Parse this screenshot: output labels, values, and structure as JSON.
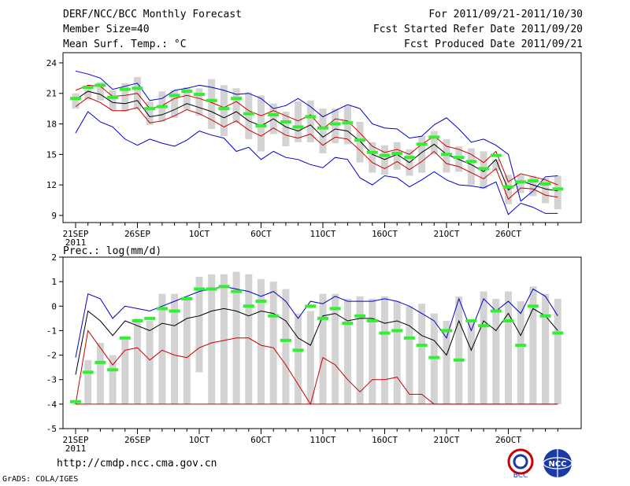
{
  "header": {
    "title": "DERF/NCC/BCC Monthly Forecast",
    "member_size": "Member Size=40",
    "variable": "Mean Surf. Temp.: °C",
    "period": "For 2011/09/21-2011/10/30",
    "started": "Fcst Started Refer Date 2011/09/20",
    "produced": "Fcst Produced Date 2011/09/21"
  },
  "footer": {
    "url": "http://cmdp.ncc.cma.gov.cn",
    "grads": "GrADS: COLA/IGES",
    "logo1_text": "BCC",
    "logo2_text": "NCC"
  },
  "chart_data": [
    {
      "type": "line",
      "title": "Mean Surf. Temp.: °C",
      "xlabel": "",
      "ylabel": "°C",
      "ylim": [
        8.3,
        25
      ],
      "yticks": [
        9,
        12,
        15,
        18,
        21,
        24
      ],
      "xticks": [
        {
          "day": 1,
          "label": "21SEP"
        },
        {
          "day": 6,
          "label": "26SEP"
        },
        {
          "day": 11,
          "label": "1OCT"
        },
        {
          "day": 16,
          "label": "6OCT"
        },
        {
          "day": 21,
          "label": "11OCT"
        },
        {
          "day": 26,
          "label": "16OCT"
        },
        {
          "day": 31,
          "label": "21OCT"
        },
        {
          "day": 36,
          "label": "26OCT"
        }
      ],
      "year_label": "2011",
      "days": 40,
      "series": [
        {
          "name": "max",
          "color": "#0000cc",
          "values": [
            23.2,
            22.9,
            22.5,
            21.4,
            21.7,
            22.0,
            20.3,
            20.5,
            21.3,
            21.5,
            21.8,
            21.6,
            21.3,
            20.9,
            21.0,
            20.5,
            19.5,
            19.8,
            20.5,
            19.7,
            18.7,
            19.3,
            19.9,
            19.5,
            18.0,
            17.6,
            17.5,
            16.6,
            16.8,
            17.9,
            18.6,
            17.5,
            16.2,
            16.5,
            15.9,
            15.0,
            10.4,
            11.4,
            12.8,
            12.9
          ]
        },
        {
          "name": "upper",
          "color": "#cc0000",
          "values": [
            21.3,
            21.8,
            21.7,
            20.7,
            20.8,
            21.0,
            19.5,
            19.8,
            20.5,
            20.8,
            20.5,
            20.1,
            19.6,
            20.2,
            19.3,
            18.8,
            19.3,
            18.8,
            18.3,
            18.9,
            17.5,
            18.5,
            18.3,
            17.1,
            15.8,
            15.2,
            15.5,
            15.0,
            16.0,
            16.8,
            15.8,
            15.5,
            15.0,
            14.2,
            15.3,
            12.3,
            13.1,
            12.8,
            12.5,
            12.0
          ]
        },
        {
          "name": "mean",
          "color": "#000000",
          "values": [
            20.4,
            21.2,
            20.9,
            20.1,
            20.0,
            20.3,
            18.7,
            18.9,
            19.4,
            20.0,
            19.6,
            19.2,
            18.6,
            19.2,
            18.3,
            17.8,
            18.5,
            17.7,
            17.3,
            17.9,
            16.7,
            17.5,
            17.3,
            16.3,
            15.0,
            14.5,
            15.0,
            14.2,
            15.2,
            16.0,
            15.0,
            14.5,
            14.0,
            13.3,
            14.5,
            11.5,
            12.4,
            12.0,
            11.6,
            11.4
          ]
        },
        {
          "name": "lower",
          "color": "#cc0000",
          "values": [
            19.7,
            20.6,
            20.1,
            19.3,
            19.3,
            19.6,
            18.1,
            18.3,
            18.8,
            19.4,
            19.0,
            18.4,
            17.7,
            18.3,
            17.4,
            16.8,
            17.6,
            16.9,
            16.6,
            17.0,
            15.9,
            16.7,
            16.5,
            15.4,
            14.2,
            13.6,
            14.3,
            13.5,
            14.3,
            15.3,
            14.1,
            13.8,
            13.2,
            12.6,
            13.6,
            10.6,
            11.7,
            11.6,
            11.0,
            10.8
          ]
        },
        {
          "name": "min",
          "color": "#0000cc",
          "values": [
            17.1,
            19.2,
            18.2,
            17.7,
            16.5,
            15.9,
            16.5,
            16.1,
            15.8,
            16.4,
            17.3,
            16.9,
            16.6,
            15.3,
            15.7,
            14.5,
            15.3,
            14.7,
            14.5,
            14.0,
            13.7,
            14.7,
            14.5,
            12.7,
            12.0,
            12.9,
            12.7,
            11.8,
            12.5,
            13.3,
            12.5,
            12.0,
            11.9,
            11.7,
            12.3,
            9.1,
            10.2,
            9.8,
            9.2,
            9.2
          ]
        },
        {
          "name": "observed",
          "color": "#33ee33",
          "values": [
            20.5,
            21.6,
            21.8,
            20.6,
            21.4,
            21.5,
            19.5,
            19.7,
            20.8,
            21.2,
            20.9,
            20.3,
            19.5,
            20.5,
            19.0,
            17.8,
            18.9,
            18.2,
            17.7,
            18.7,
            17.6,
            18.0,
            18.1,
            16.4,
            15.2,
            14.9,
            15.1,
            14.7,
            16.0,
            16.7,
            15.0,
            14.7,
            14.3,
            13.6,
            14.9,
            11.8,
            12.3,
            12.4,
            12.1,
            11.6
          ]
        }
      ],
      "box_low": [
        19.5,
        20.4,
        20.3,
        19.3,
        19.2,
        19.4,
        17.9,
        18.2,
        18.6,
        19.4,
        18.8,
        17.5,
        16.8,
        18.1,
        16.5,
        15.3,
        17.0,
        15.8,
        16.2,
        16.2,
        15.1,
        16.1,
        16.0,
        14.2,
        13.2,
        13.0,
        13.5,
        12.9,
        13.2,
        15.0,
        13.2,
        13.3,
        12.0,
        11.6,
        13.4,
        10.1,
        11.2,
        10.9,
        10.2,
        9.6
      ],
      "box_high": [
        21.0,
        21.7,
        22.1,
        21.3,
        22.0,
        22.6,
        20.2,
        21.2,
        21.3,
        21.6,
        21.5,
        22.4,
        21.8,
        21.5,
        21.1,
        20.8,
        20.0,
        19.2,
        20.2,
        20.3,
        19.5,
        19.5,
        19.8,
        18.2,
        16.2,
        15.9,
        16.2,
        15.5,
        16.8,
        17.3,
        16.5,
        15.8,
        15.6,
        15.3,
        14.5,
        13.0,
        13.0,
        12.9,
        12.7,
        12.9
      ]
    },
    {
      "type": "line",
      "title": "Prec.: log(mm/d)",
      "xlabel": "",
      "ylabel": "log(mm/d)",
      "ylim": [
        -5,
        2
      ],
      "yticks": [
        -5,
        -4,
        -3,
        -2,
        -1,
        0,
        1,
        2
      ],
      "xticks": [
        {
          "day": 1,
          "label": "21SEP"
        },
        {
          "day": 6,
          "label": "26SEP"
        },
        {
          "day": 11,
          "label": "1OCT"
        },
        {
          "day": 16,
          "label": "6OCT"
        },
        {
          "day": 21,
          "label": "11OCT"
        },
        {
          "day": 26,
          "label": "16OCT"
        },
        {
          "day": 31,
          "label": "21OCT"
        },
        {
          "day": 36,
          "label": "26OCT"
        }
      ],
      "year_label": "2011",
      "days": 40,
      "series": [
        {
          "name": "max",
          "color": "#0000cc",
          "values": [
            -2.1,
            0.5,
            0.3,
            -0.5,
            0.0,
            -0.1,
            -0.2,
            0.0,
            0.2,
            0.4,
            0.6,
            0.7,
            0.8,
            0.7,
            0.6,
            0.4,
            0.6,
            0.2,
            -0.5,
            0.2,
            0.1,
            0.4,
            0.2,
            0.2,
            0.2,
            0.3,
            0.2,
            0.0,
            -0.3,
            -0.6,
            -1.3,
            0.3,
            -1.0,
            0.3,
            -0.2,
            0.2,
            -0.3,
            0.7,
            0.4,
            -0.4
          ]
        },
        {
          "name": "mean",
          "color": "#000000",
          "values": [
            -2.8,
            -0.2,
            -0.6,
            -1.2,
            -0.6,
            -0.8,
            -1.0,
            -0.7,
            -0.8,
            -0.5,
            -0.4,
            -0.2,
            -0.1,
            -0.2,
            -0.4,
            -0.2,
            -0.3,
            -0.6,
            -1.3,
            -1.6,
            -0.4,
            -0.3,
            -0.6,
            -0.5,
            -0.5,
            -0.7,
            -0.6,
            -0.8,
            -1.2,
            -1.4,
            -2.0,
            -0.6,
            -1.8,
            -0.6,
            -1.0,
            -0.3,
            -1.2,
            -0.1,
            -0.4,
            -1.0
          ]
        },
        {
          "name": "lower",
          "color": "#cc0000",
          "values": [
            -4.0,
            -1.0,
            -1.7,
            -2.4,
            -1.8,
            -1.7,
            -2.2,
            -1.8,
            -2.0,
            -2.1,
            -1.7,
            -1.5,
            -1.4,
            -1.3,
            -1.3,
            -1.6,
            -1.7,
            -2.4,
            -3.2,
            -4.0,
            -2.1,
            -2.4,
            -3.0,
            -3.5,
            -3.0,
            -3.0,
            -2.9,
            -3.6,
            -3.6,
            -4.0,
            -4.0,
            -4.0,
            -4.0,
            -4.0,
            -4.0,
            -4.0,
            -4.0,
            -4.0,
            -4.0,
            -4.0
          ]
        },
        {
          "name": "min",
          "color": "#cc0000",
          "values": [
            -4.0,
            -4.0,
            -4.0,
            -4.0,
            -4.0,
            -4.0,
            -4.0,
            -4.0,
            -4.0,
            -4.0,
            -4.0,
            -4.0,
            -4.0,
            -4.0,
            -4.0,
            -4.0,
            -4.0,
            -4.0,
            -4.0,
            -4.0,
            -4.0,
            -4.0,
            -4.0,
            -4.0,
            -4.0,
            -4.0,
            -4.0,
            -4.0,
            -4.0,
            -4.0,
            -4.0,
            -4.0,
            -4.0,
            -4.0,
            -4.0,
            -4.0,
            -4.0,
            -4.0,
            -4.0,
            -4.0
          ]
        },
        {
          "name": "observed",
          "color": "#33ee33",
          "values": [
            -3.9,
            -2.7,
            -2.3,
            -2.6,
            -1.3,
            -0.6,
            -0.5,
            -0.1,
            -0.2,
            0.3,
            0.7,
            0.7,
            0.8,
            0.6,
            0.0,
            0.2,
            -0.4,
            -1.4,
            -1.8,
            0.0,
            -0.5,
            -0.1,
            -0.7,
            -0.4,
            -0.6,
            -1.1,
            -1.0,
            -1.3,
            -1.6,
            -2.1,
            -1.0,
            -2.2,
            -0.6,
            -0.8,
            -0.2,
            -0.6,
            -1.6,
            0.0,
            -0.4,
            -1.1
          ]
        }
      ],
      "box_low": [
        -4.0,
        -4.0,
        -4.0,
        -4.0,
        -4.0,
        -4.0,
        -4.0,
        -4.0,
        -4.0,
        -4.0,
        -2.7,
        -4.0,
        -4.0,
        -4.0,
        -4.0,
        -4.0,
        -4.0,
        -4.0,
        -4.0,
        -4.0,
        -4.0,
        -4.0,
        -4.0,
        -4.0,
        -4.0,
        -4.0,
        -4.0,
        -4.0,
        -4.0,
        -4.0,
        -4.0,
        -4.0,
        -4.0,
        -4.0,
        -4.0,
        -4.0,
        -4.0,
        -4.0,
        -4.0,
        -4.0
      ],
      "box_high": [
        -4.0,
        -2.2,
        -1.5,
        -2.0,
        -1.3,
        -0.5,
        -0.6,
        0.5,
        0.5,
        0.4,
        1.2,
        1.3,
        1.3,
        1.4,
        1.3,
        1.1,
        1.0,
        0.7,
        -0.3,
        -0.2,
        0.5,
        0.5,
        0.3,
        0.4,
        0.3,
        0.4,
        0.2,
        0.0,
        0.1,
        -0.3,
        -0.6,
        0.4,
        -0.6,
        0.6,
        0.3,
        0.6,
        0.2,
        0.8,
        0.5,
        0.3
      ]
    }
  ]
}
